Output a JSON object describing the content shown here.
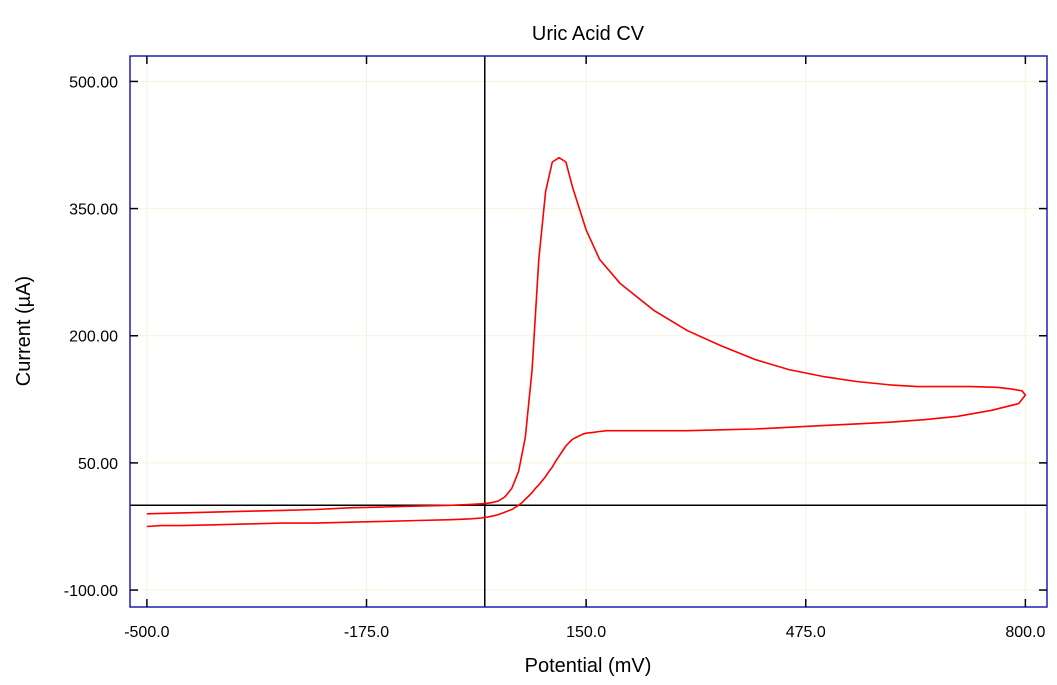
{
  "chart_data": {
    "type": "line",
    "title": "Uric Acid CV",
    "xlabel": "Potential (mV)",
    "ylabel": "Current (µA)",
    "xlim": [
      -525,
      832
    ],
    "ylim": [
      -120,
      530
    ],
    "xticks": [
      -500,
      -175,
      150,
      475,
      800
    ],
    "xtick_labels": [
      "-500.0",
      "-175.0",
      "150.0",
      "475.0",
      "800.0"
    ],
    "yticks": [
      -100,
      50,
      200,
      350,
      500
    ],
    "ytick_labels": [
      "-100.00",
      "50.00",
      "200.00",
      "350.00",
      "500.00"
    ],
    "grid": true,
    "crosshair": {
      "x": 0,
      "y": 0
    },
    "colors": {
      "frame": "#1f1fb4",
      "series": "#ff0000",
      "grid": "#f4f4dc",
      "crosshair": "#000000"
    },
    "series": [
      {
        "x": [
          -500,
          -480,
          -450,
          -400,
          -350,
          -300,
          -250,
          -200,
          -150,
          -100,
          -50,
          -20,
          -5,
          10,
          20,
          30,
          40,
          50,
          55,
          60,
          65,
          70,
          75,
          80,
          85,
          90,
          95,
          100,
          105,
          110,
          115,
          120,
          125,
          130,
          135,
          140,
          145,
          150,
          160,
          170,
          180,
          200,
          230,
          260,
          300,
          350,
          400,
          450,
          500,
          550,
          600,
          650,
          700,
          750,
          790,
          800,
          795,
          780,
          760,
          720,
          680,
          640,
          600,
          550,
          500,
          450,
          400,
          350,
          300,
          250,
          200,
          170,
          150,
          130,
          120,
          110,
          100,
          90,
          80,
          70,
          60,
          50,
          40,
          30,
          20,
          10,
          0,
          -20,
          -50,
          -100,
          -150,
          -200,
          -250,
          -300,
          -350,
          -400,
          -450,
          -500
        ],
        "y": [
          -25,
          -24,
          -24,
          -23,
          -22,
          -21,
          -21,
          -20,
          -19,
          -18,
          -17,
          -16,
          -15,
          -13,
          -11,
          -8,
          -5,
          0,
          3,
          7,
          11,
          15,
          20,
          24,
          29,
          34,
          40,
          45,
          52,
          58,
          64,
          70,
          74,
          78,
          80,
          82,
          84,
          85,
          86,
          87,
          88,
          88,
          88,
          88,
          88,
          89,
          90,
          92,
          94,
          96,
          98,
          101,
          105,
          112,
          120,
          130,
          135,
          137,
          139,
          140,
          140,
          140,
          142,
          146,
          152,
          160,
          172,
          188,
          206,
          230,
          262,
          290,
          325,
          375,
          405,
          410,
          405,
          370,
          290,
          160,
          80,
          40,
          20,
          10,
          5,
          3,
          2,
          1,
          0,
          -1,
          -2,
          -3,
          -5,
          -6,
          -7,
          -8,
          -9,
          -10
        ]
      }
    ]
  }
}
